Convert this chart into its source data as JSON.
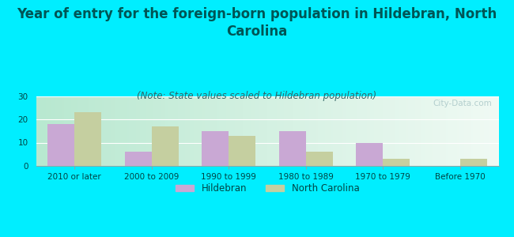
{
  "title": "Year of entry for the foreign-born population in Hildebran, North\nCarolina",
  "subtitle": "(Note: State values scaled to Hildebran population)",
  "categories": [
    "2010 or later",
    "2000 to 2009",
    "1990 to 1999",
    "1980 to 1989",
    "1970 to 1979",
    "Before 1970"
  ],
  "hildebran_values": [
    18,
    6,
    15,
    15,
    10,
    0
  ],
  "nc_values": [
    23,
    17,
    13,
    6,
    3,
    3
  ],
  "hildebran_color": "#c9a8d4",
  "nc_color": "#c5cfa0",
  "background_color": "#00eeff",
  "plot_bg_left": "#b8e8d0",
  "plot_bg_right": "#f0faf4",
  "ylim": [
    0,
    30
  ],
  "yticks": [
    0,
    10,
    20,
    30
  ],
  "bar_width": 0.35,
  "title_fontsize": 12,
  "subtitle_fontsize": 8.5,
  "tick_fontsize": 7.5,
  "legend_fontsize": 8.5,
  "title_color": "#005555",
  "subtitle_color": "#336666",
  "tick_color": "#004444",
  "watermark": "City-Data.com"
}
